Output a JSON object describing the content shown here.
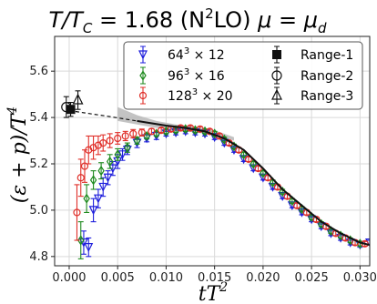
{
  "chart_data": {
    "type": "scatter",
    "title_parts": {
      "main_left": "T/T",
      "main_sub": "C",
      "eq": " = 1.68 (N",
      "sup": "2",
      "lo": "LO) ",
      "mu": "μ",
      "eq2": " = ",
      "mu2": "μ",
      "sub2": "d"
    },
    "xlabel": "tT",
    "xlabel_sup": "2",
    "ylabel": "(ε + p)/T",
    "ylabel_sup": "4",
    "xlim": [
      -0.0015,
      0.031
    ],
    "ylim": [
      4.76,
      5.75
    ],
    "xticks": [
      "0.000",
      "0.005",
      "0.010",
      "0.015",
      "0.020",
      "0.025",
      "0.030"
    ],
    "xtick_values": [
      0.0,
      0.005,
      0.01,
      0.015,
      0.02,
      0.025,
      0.03
    ],
    "yticks": [
      "4.8",
      "5.0",
      "5.2",
      "5.4",
      "5.6"
    ],
    "ytick_values": [
      4.8,
      5.0,
      5.2,
      5.4,
      5.6
    ],
    "grid": true,
    "legend_placement": "top-right",
    "colors": {
      "blue": "#1f1fdc",
      "green": "#1e8a1e",
      "red": "#e0302a",
      "black": "#111111",
      "band": "#b8b8b8"
    },
    "series": [
      {
        "name": "64³ × 12",
        "label_base": "64",
        "label_exp": "3",
        "label_rest": " × 12",
        "marker": "triangle-down",
        "color": "#1f1fdc",
        "x": [
          0.0015,
          0.002,
          0.0025,
          0.003,
          0.0035,
          0.004,
          0.0045,
          0.005,
          0.0055,
          0.006,
          0.007,
          0.008,
          0.009,
          0.01,
          0.011,
          0.012,
          0.013,
          0.014,
          0.015,
          0.016,
          0.017,
          0.018,
          0.019,
          0.02,
          0.021,
          0.022,
          0.023,
          0.024,
          0.025,
          0.026,
          0.027,
          0.028,
          0.029,
          0.03,
          0.031
        ],
        "y": [
          4.86,
          4.84,
          5.0,
          5.05,
          5.1,
          5.14,
          5.18,
          5.21,
          5.24,
          5.26,
          5.29,
          5.31,
          5.32,
          5.33,
          5.335,
          5.34,
          5.335,
          5.33,
          5.315,
          5.29,
          5.26,
          5.22,
          5.18,
          5.14,
          5.1,
          5.06,
          5.02,
          4.99,
          4.96,
          4.93,
          4.9,
          4.88,
          4.86,
          4.85,
          4.86
        ],
        "err": [
          0.05,
          0.04,
          0.05,
          0.04,
          0.04,
          0.03,
          0.03,
          0.03,
          0.025,
          0.02,
          0.02,
          0.015,
          0.015,
          0.01,
          0.01,
          0.01,
          0.01,
          0.01,
          0.01,
          0.01,
          0.01,
          0.01,
          0.01,
          0.01,
          0.01,
          0.01,
          0.01,
          0.01,
          0.01,
          0.01,
          0.01,
          0.01,
          0.01,
          0.01,
          0.01
        ]
      },
      {
        "name": "96³ × 16",
        "label_base": "96",
        "label_exp": "3",
        "label_rest": " × 16",
        "marker": "diamond",
        "color": "#1e8a1e",
        "x": [
          0.0012,
          0.0018,
          0.0025,
          0.0033,
          0.0042,
          0.005,
          0.006,
          0.007,
          0.008,
          0.009,
          0.01,
          0.011,
          0.012,
          0.013,
          0.014,
          0.015,
          0.016,
          0.017,
          0.018,
          0.019,
          0.02,
          0.021,
          0.022,
          0.023,
          0.024,
          0.025,
          0.026,
          0.027,
          0.028,
          0.029,
          0.03
        ],
        "y": [
          4.87,
          5.05,
          5.13,
          5.17,
          5.21,
          5.24,
          5.27,
          5.3,
          5.32,
          5.33,
          5.34,
          5.345,
          5.35,
          5.345,
          5.34,
          5.33,
          5.305,
          5.275,
          5.24,
          5.2,
          5.16,
          5.12,
          5.08,
          5.04,
          5.005,
          4.97,
          4.94,
          4.91,
          4.89,
          4.87,
          4.855
        ],
        "err": [
          0.08,
          0.06,
          0.04,
          0.035,
          0.03,
          0.025,
          0.02,
          0.015,
          0.012,
          0.01,
          0.01,
          0.01,
          0.01,
          0.01,
          0.01,
          0.01,
          0.01,
          0.01,
          0.01,
          0.01,
          0.01,
          0.01,
          0.01,
          0.01,
          0.01,
          0.01,
          0.01,
          0.01,
          0.01,
          0.01,
          0.01
        ]
      },
      {
        "name": "128³ × 20",
        "label_base": "128",
        "label_exp": "3",
        "label_rest": " × 20",
        "marker": "circle",
        "color": "#e0302a",
        "x": [
          0.0008,
          0.0012,
          0.0016,
          0.002,
          0.0025,
          0.003,
          0.0035,
          0.0042,
          0.005,
          0.0058,
          0.0066,
          0.0075,
          0.0085,
          0.0095,
          0.0105,
          0.0115,
          0.0125,
          0.0135,
          0.0145,
          0.0155,
          0.0165,
          0.0175,
          0.0185,
          0.0195,
          0.0205,
          0.0215,
          0.0225,
          0.0235,
          0.0245,
          0.0255,
          0.0265,
          0.0275,
          0.0285,
          0.0295,
          0.0305
        ],
        "y": [
          4.99,
          5.14,
          5.19,
          5.26,
          5.27,
          5.28,
          5.29,
          5.3,
          5.31,
          5.32,
          5.33,
          5.335,
          5.34,
          5.345,
          5.35,
          5.355,
          5.355,
          5.35,
          5.34,
          5.32,
          5.29,
          5.26,
          5.22,
          5.18,
          5.14,
          5.1,
          5.06,
          5.02,
          4.99,
          4.96,
          4.93,
          4.9,
          4.88,
          4.86,
          4.855
        ],
        "err": [
          0.12,
          0.08,
          0.07,
          0.06,
          0.05,
          0.04,
          0.035,
          0.03,
          0.025,
          0.02,
          0.018,
          0.015,
          0.012,
          0.01,
          0.01,
          0.01,
          0.01,
          0.01,
          0.01,
          0.01,
          0.01,
          0.01,
          0.01,
          0.01,
          0.01,
          0.01,
          0.01,
          0.01,
          0.01,
          0.01,
          0.01,
          0.01,
          0.01,
          0.01,
          0.01
        ]
      }
    ],
    "continuum_fit": {
      "x": [
        0.0,
        0.004,
        0.007,
        0.01,
        0.012,
        0.014,
        0.016,
        0.018,
        0.02,
        0.022,
        0.024,
        0.026,
        0.028,
        0.03,
        0.031
      ],
      "y": [
        5.43,
        5.405,
        5.385,
        5.365,
        5.355,
        5.34,
        5.31,
        5.26,
        5.18,
        5.09,
        5.02,
        4.95,
        4.9,
        4.86,
        4.85
      ]
    },
    "band": {
      "x": [
        0.005,
        0.007,
        0.009,
        0.011,
        0.013,
        0.015,
        0.017
      ],
      "upper": [
        5.445,
        5.41,
        5.385,
        5.37,
        5.36,
        5.345,
        5.315
      ],
      "lower": [
        5.385,
        5.37,
        5.355,
        5.345,
        5.335,
        5.325,
        5.3
      ]
    },
    "extrapolated": [
      {
        "name": "Range-1",
        "marker": "square",
        "x": 0.00015,
        "y": 5.435,
        "err": 0.03
      },
      {
        "name": "Range-2",
        "marker": "circle-open",
        "x": -0.0003,
        "y": 5.445,
        "err": 0.045
      },
      {
        "name": "Range-3",
        "marker": "triangle-open",
        "x": 0.0009,
        "y": 5.475,
        "err": 0.04
      }
    ]
  }
}
